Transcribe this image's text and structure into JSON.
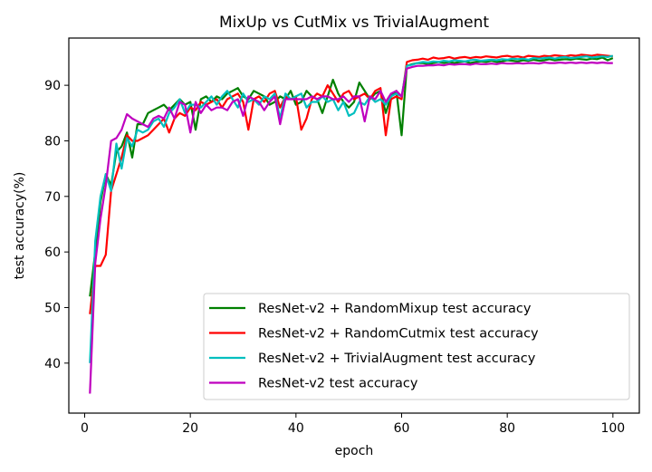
{
  "chart_data": {
    "type": "line",
    "title": "MixUp vs CutMix vs TrivialAugment",
    "xlabel": "epoch",
    "ylabel": "test accuracy(%)",
    "xlim": [
      -3,
      105
    ],
    "ylim": [
      31,
      98.5
    ],
    "xticks": [
      0,
      20,
      40,
      60,
      80,
      100
    ],
    "yticks": [
      40,
      50,
      60,
      70,
      80,
      90
    ],
    "grid": false,
    "legend_position": "lower right",
    "x": [
      1,
      2,
      3,
      4,
      5,
      6,
      7,
      8,
      9,
      10,
      11,
      12,
      13,
      14,
      15,
      16,
      17,
      18,
      19,
      20,
      21,
      22,
      23,
      24,
      25,
      26,
      27,
      28,
      29,
      30,
      31,
      32,
      33,
      34,
      35,
      36,
      37,
      38,
      39,
      40,
      41,
      42,
      43,
      44,
      45,
      46,
      47,
      48,
      49,
      50,
      51,
      52,
      53,
      54,
      55,
      56,
      57,
      58,
      59,
      60,
      61,
      62,
      63,
      64,
      65,
      66,
      67,
      68,
      69,
      70,
      71,
      72,
      73,
      74,
      75,
      76,
      77,
      78,
      79,
      80,
      81,
      82,
      83,
      84,
      85,
      86,
      87,
      88,
      89,
      90,
      91,
      92,
      93,
      94,
      95,
      96,
      97,
      98,
      99,
      100
    ],
    "series": [
      {
        "name": "ResNet-v2 + RandomMixup test accuracy",
        "color": "#008000",
        "values": [
          52,
          60,
          69,
          74,
          72,
          78,
          79,
          81.5,
          77,
          83,
          83,
          85,
          85.5,
          86,
          86.5,
          85.5,
          86.5,
          87.5,
          86.5,
          87,
          82,
          87.5,
          88,
          87,
          88,
          87.5,
          88.5,
          89,
          89.5,
          88,
          87.5,
          89,
          88.5,
          88,
          86.5,
          87,
          88,
          87.5,
          89,
          86.5,
          87,
          89,
          88,
          87.5,
          85,
          88,
          91,
          88.5,
          87,
          86,
          87,
          90.5,
          89,
          87.5,
          88.5,
          89,
          85,
          88,
          89,
          81,
          93.5,
          93.8,
          94,
          94,
          93.8,
          94,
          94.2,
          94,
          94.2,
          94,
          94.2,
          94.3,
          94,
          94.2,
          94.3,
          94.2,
          94.4,
          94.2,
          94.3,
          94.5,
          94.4,
          94.3,
          94.5,
          94.4,
          94.6,
          94.4,
          94.5,
          94.7,
          94.5,
          94.6,
          94.7,
          94.6,
          94.8,
          94.7,
          94.6,
          94.8,
          94.7,
          95,
          94.5,
          94.9
        ]
      },
      {
        "name": "ResNet-v2 + RandomCutmix test accuracy",
        "color": "#ff0000",
        "values": [
          48.8,
          57.5,
          57.5,
          59.5,
          71,
          74,
          77,
          81,
          80,
          80,
          80.5,
          81,
          82,
          83,
          84,
          81.5,
          84,
          85,
          84.5,
          86,
          85.5,
          87,
          86.5,
          87,
          87.5,
          86,
          87.5,
          88,
          88.5,
          87,
          82,
          87.5,
          88,
          87,
          88.5,
          89,
          86,
          88,
          87.5,
          88,
          82,
          84,
          87.5,
          88.5,
          88,
          90,
          88.5,
          87,
          88.5,
          89,
          87.5,
          88,
          88.5,
          87.5,
          89,
          89.5,
          81,
          87.5,
          88,
          87.5,
          94.2,
          94.5,
          94.6,
          94.8,
          94.6,
          95,
          94.8,
          94.9,
          95.1,
          94.8,
          95,
          95.1,
          94.9,
          95.1,
          95,
          95.2,
          95.1,
          95,
          95.2,
          95.3,
          95.1,
          95.2,
          95,
          95.3,
          95.2,
          95.1,
          95.3,
          95.2,
          95.4,
          95.3,
          95.2,
          95.4,
          95.3,
          95.5,
          95.4,
          95.3,
          95.5,
          95.4,
          95.3,
          95.2
        ]
      },
      {
        "name": "ResNet-v2 + TrivialAugment test accuracy",
        "color": "#00bfbf",
        "values": [
          40,
          62,
          70,
          74,
          71,
          79.5,
          75,
          80.5,
          79,
          82,
          81.5,
          82,
          83.5,
          84,
          82.5,
          85,
          86,
          87.5,
          85,
          86.5,
          86.5,
          86,
          87,
          88,
          86.5,
          88,
          89,
          87.5,
          86,
          88.5,
          87,
          87.5,
          86.5,
          88,
          87.5,
          88.5,
          84,
          88.5,
          87.5,
          88,
          88.5,
          86,
          87,
          87,
          88,
          87,
          87.5,
          85.5,
          87,
          84.5,
          85,
          87,
          86.5,
          88,
          87,
          87.5,
          86.5,
          88,
          88.5,
          88,
          93.5,
          93.7,
          94,
          94.2,
          94.1,
          94.3,
          94.2,
          94.4,
          94.3,
          94.5,
          94.4,
          94.3,
          94.5,
          94.6,
          94.4,
          94.5,
          94.6,
          94.5,
          94.7,
          94.6,
          94.8,
          94.7,
          94.8,
          94.6,
          94.9,
          94.8,
          94.9,
          95,
          94.8,
          95,
          95.1,
          94.9,
          95,
          95.1,
          95.2,
          95,
          95.1,
          95.2,
          95.1,
          95.3
        ]
      },
      {
        "name": "ResNet-v2 test accuracy",
        "color": "#bf00bf",
        "values": [
          34.5,
          58,
          66,
          72,
          80,
          80.5,
          82,
          84.8,
          84,
          83.5,
          83,
          82.5,
          84,
          84.5,
          84,
          86,
          84,
          87,
          86.5,
          81.5,
          87,
          85,
          86.5,
          85.5,
          86,
          86,
          85.5,
          87,
          87.5,
          84.5,
          88,
          87.5,
          87,
          85.5,
          87,
          88,
          83,
          87.5,
          87.5,
          87.5,
          87.5,
          87.5,
          88,
          87.5,
          88,
          88,
          87.5,
          87.5,
          88,
          87,
          88,
          88,
          83.5,
          88,
          87.5,
          89,
          87,
          88.5,
          89,
          88,
          93,
          93.3,
          93.5,
          93.5,
          93.6,
          93.6,
          93.7,
          93.6,
          93.8,
          93.7,
          93.8,
          93.8,
          93.7,
          93.9,
          93.8,
          93.8,
          93.9,
          93.8,
          94,
          93.9,
          93.9,
          94,
          93.9,
          94,
          94,
          93.9,
          94.1,
          94,
          94,
          94.1,
          94,
          94.1,
          94,
          94.1,
          94,
          94.1,
          94,
          94.1,
          94,
          94
        ]
      }
    ]
  }
}
